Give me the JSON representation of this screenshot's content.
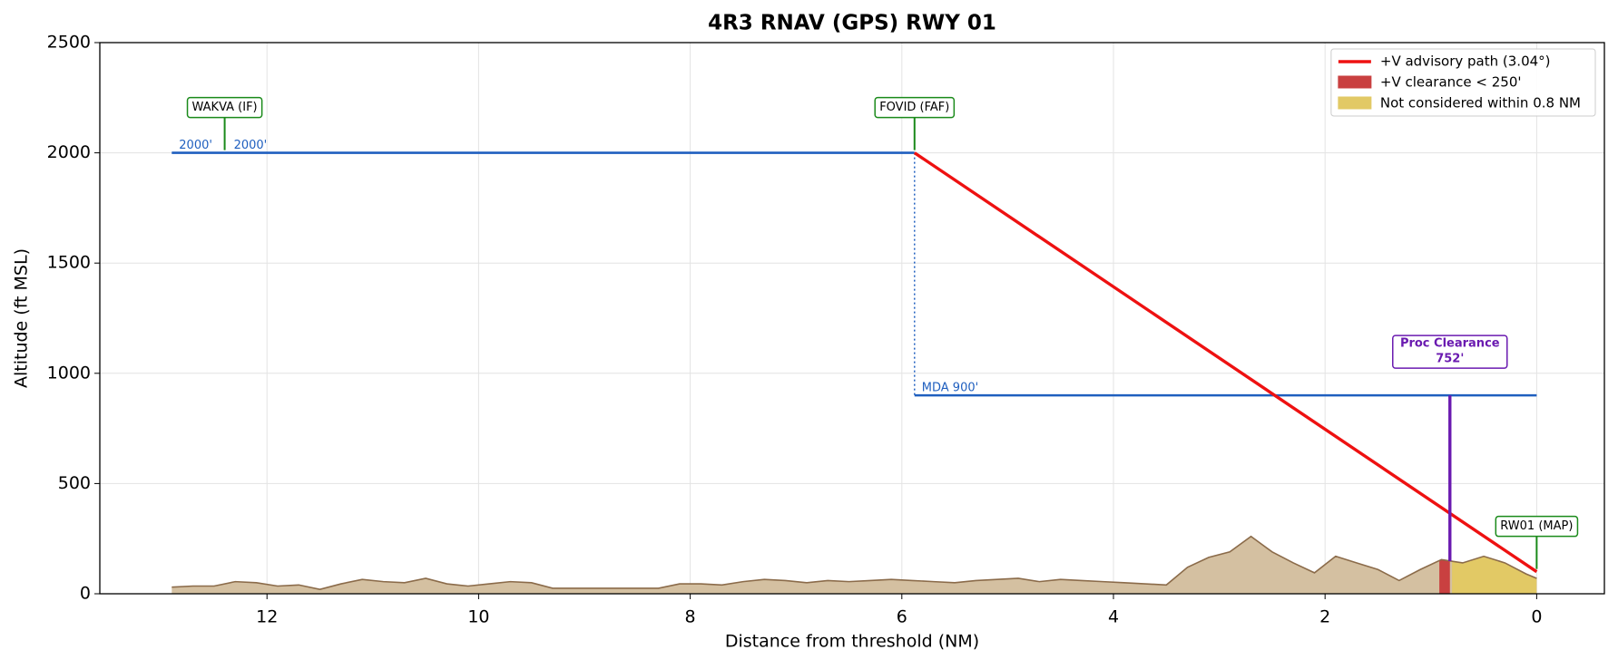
{
  "chart_data": {
    "type": "line",
    "title": "4R3  RNAV (GPS) RWY 01",
    "x_label": "Distance from threshold (NM)",
    "y_label": "Altitude (ft MSL)",
    "xlim": [
      13.58,
      -0.64
    ],
    "ylim": [
      0,
      2500
    ],
    "xticks": [
      12,
      10,
      8,
      6,
      4,
      2,
      0
    ],
    "yticks": [
      0,
      500,
      1000,
      1500,
      2000,
      2500
    ],
    "grid": true,
    "legend": "upper right",
    "series": [
      {
        "name": "+V advisory path (3.04°)",
        "color": "#ee1111",
        "x": [
          5.88,
          0
        ],
        "values": [
          2000,
          100
        ]
      }
    ],
    "regions": [
      {
        "name": "+V clearance < 250'",
        "color": "#c94040",
        "x": [
          0.92,
          0.82
        ]
      },
      {
        "name": "Not considered within 0.8 NM",
        "color": "#e2c965",
        "x": [
          0.8,
          0
        ]
      }
    ],
    "terrain": {
      "color": "#d4c0a1",
      "edge": "#8b6b4a",
      "x": [
        12.9,
        12.7,
        12.5,
        12.3,
        12.1,
        11.9,
        11.7,
        11.5,
        11.3,
        11.1,
        10.9,
        10.7,
        10.5,
        10.3,
        10.1,
        9.9,
        9.7,
        9.5,
        9.3,
        9.1,
        8.9,
        8.7,
        8.5,
        8.3,
        8.1,
        7.9,
        7.7,
        7.5,
        7.3,
        7.1,
        6.9,
        6.7,
        6.5,
        6.3,
        6.1,
        5.9,
        5.7,
        5.5,
        5.3,
        5.1,
        4.9,
        4.7,
        4.5,
        4.3,
        4.1,
        3.9,
        3.7,
        3.5,
        3.3,
        3.1,
        2.9,
        2.7,
        2.5,
        2.3,
        2.1,
        1.9,
        1.7,
        1.5,
        1.3,
        1.1,
        0.9,
        0.7,
        0.5,
        0.3,
        0.1,
        0
      ],
      "values": [
        30,
        35,
        35,
        55,
        50,
        35,
        40,
        20,
        45,
        65,
        55,
        50,
        70,
        45,
        35,
        45,
        55,
        50,
        25,
        25,
        25,
        25,
        25,
        25,
        45,
        45,
        40,
        55,
        65,
        60,
        50,
        60,
        55,
        60,
        65,
        60,
        55,
        50,
        60,
        65,
        70,
        55,
        65,
        60,
        55,
        50,
        45,
        40,
        120,
        165,
        190,
        260,
        190,
        140,
        95,
        170,
        140,
        110,
        60,
        110,
        155,
        140,
        170,
        140,
        90,
        70
      ]
    },
    "levels": [
      {
        "label": "2000'",
        "x": [
          12.9,
          5.88
        ],
        "values": [
          2000,
          2000
        ],
        "color": "#1f5fbf"
      },
      {
        "label": "MDA 900'",
        "x": [
          5.88,
          0
        ],
        "values": [
          900,
          900
        ],
        "color": "#1f5fbf"
      }
    ],
    "fixes": [
      {
        "label": "WAKVA (IF)",
        "x": 12.4,
        "altitude": 2000,
        "altitude_label": "2000'"
      },
      {
        "label": "FOVID (FAF)",
        "x": 5.88,
        "altitude": 2000
      },
      {
        "label": "RW01 (MAP)",
        "x": 0,
        "altitude": 100
      }
    ],
    "clearance": {
      "label": "Proc Clearance",
      "x": 0.82,
      "bottom": 148,
      "top": 900,
      "value": 752,
      "value_label": "752'",
      "color": "#6a1ab0"
    }
  }
}
